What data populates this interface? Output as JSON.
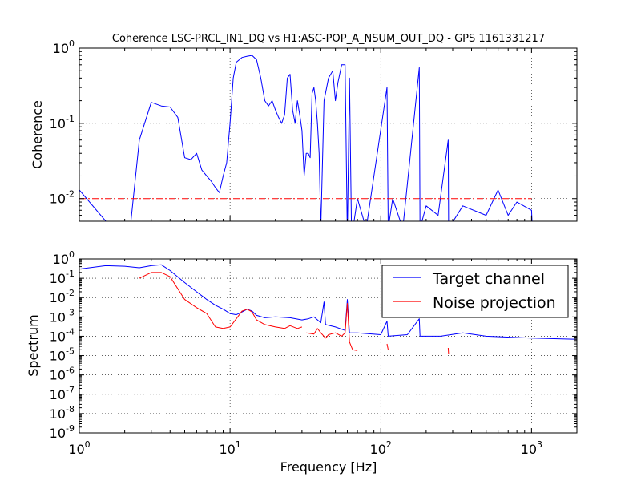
{
  "chart_data": [
    {
      "type": "line",
      "title": "Coherence LSC-PRCL_IN1_DQ vs H1:ASC-POP_A_NSUM_OUT_DQ - GPS 1161331217",
      "xlabel": "",
      "ylabel": "Coherence",
      "xscale": "log",
      "yscale": "log",
      "xlim": [
        1,
        2000
      ],
      "ylim": [
        0.005,
        1
      ],
      "yticks": [
        {
          "value": 1,
          "mantissa": "10",
          "exp": "0"
        },
        {
          "value": 0.1,
          "mantissa": "10",
          "exp": "-1"
        },
        {
          "value": 0.01,
          "mantissa": "10",
          "exp": "-2"
        }
      ],
      "grid": true,
      "series": [
        {
          "color": "#0000ff",
          "points": [
            [
              1.0,
              0.013
            ],
            [
              1.5,
              0.005
            ],
            [
              2.1,
              0.0045
            ],
            [
              2.2,
              0.005
            ],
            [
              2.5,
              0.06
            ],
            [
              3.0,
              0.19
            ],
            [
              3.5,
              0.17
            ],
            [
              4.0,
              0.165
            ],
            [
              4.5,
              0.12
            ],
            [
              5.0,
              0.035
            ],
            [
              5.5,
              0.033
            ],
            [
              6.0,
              0.04
            ],
            [
              6.5,
              0.024
            ],
            [
              7.0,
              0.02
            ],
            [
              7.5,
              0.017
            ],
            [
              8.0,
              0.014
            ],
            [
              8.5,
              0.012
            ],
            [
              9.0,
              0.02
            ],
            [
              9.5,
              0.03
            ],
            [
              10.0,
              0.1
            ],
            [
              10.5,
              0.4
            ],
            [
              11.0,
              0.65
            ],
            [
              12.0,
              0.75
            ],
            [
              13.0,
              0.78
            ],
            [
              14.0,
              0.8
            ],
            [
              15.0,
              0.7
            ],
            [
              16.0,
              0.4
            ],
            [
              17.0,
              0.2
            ],
            [
              18.0,
              0.17
            ],
            [
              19.0,
              0.2
            ],
            [
              20.0,
              0.15
            ],
            [
              21.0,
              0.12
            ],
            [
              22.0,
              0.1
            ],
            [
              23.0,
              0.13
            ],
            [
              24.0,
              0.4
            ],
            [
              25.0,
              0.45
            ],
            [
              26.0,
              0.15
            ],
            [
              27.0,
              0.1
            ],
            [
              28.0,
              0.2
            ],
            [
              29.0,
              0.13
            ],
            [
              30.0,
              0.08
            ],
            [
              31.0,
              0.02
            ],
            [
              32.0,
              0.04
            ],
            [
              33.0,
              0.04
            ],
            [
              34.0,
              0.035
            ],
            [
              35.0,
              0.25
            ],
            [
              36.0,
              0.3
            ],
            [
              37.0,
              0.2
            ],
            [
              38.0,
              0.1
            ],
            [
              39.0,
              0.04
            ],
            [
              40.0,
              0.004
            ],
            [
              42.0,
              0.2
            ],
            [
              45.0,
              0.4
            ],
            [
              48.0,
              0.5
            ],
            [
              50.0,
              0.2
            ],
            [
              52.0,
              0.35
            ],
            [
              55.0,
              0.6
            ],
            [
              58.0,
              0.6
            ],
            [
              60.0,
              0.003
            ],
            [
              62.0,
              0.4
            ],
            [
              64.0,
              0.003
            ],
            [
              70.0,
              0.01
            ],
            [
              80.0,
              0.004
            ],
            [
              110.0,
              0.3
            ],
            [
              112.0,
              0.004
            ],
            [
              120.0,
              0.01
            ],
            [
              140.0,
              0.004
            ],
            [
              180.0,
              0.55
            ],
            [
              182.0,
              0.004
            ],
            [
              200.0,
              0.008
            ],
            [
              240.0,
              0.006
            ],
            [
              280.0,
              0.06
            ],
            [
              282.0,
              0.004
            ],
            [
              350.0,
              0.008
            ],
            [
              500.0,
              0.006
            ],
            [
              600.0,
              0.013
            ],
            [
              700.0,
              0.006
            ],
            [
              800.0,
              0.009
            ],
            [
              1000.0,
              0.007
            ],
            [
              1010.0,
              0.0045
            ]
          ]
        },
        {
          "color": "#ff0000",
          "dash": "dashdot",
          "points": [
            [
              1.0,
              0.01
            ],
            [
              1000.0,
              0.01
            ]
          ]
        }
      ]
    },
    {
      "type": "line",
      "title": "",
      "xlabel": "Frequency [Hz]",
      "ylabel": "Spectrum",
      "xscale": "log",
      "yscale": "log",
      "xlim": [
        1,
        2000
      ],
      "ylim": [
        1e-09,
        1
      ],
      "xticks": [
        {
          "value": 1,
          "mantissa": "10",
          "exp": "0"
        },
        {
          "value": 10,
          "mantissa": "10",
          "exp": "1"
        },
        {
          "value": 100,
          "mantissa": "10",
          "exp": "2"
        },
        {
          "value": 1000,
          "mantissa": "10",
          "exp": "3"
        }
      ],
      "yticks": [
        {
          "value": 1,
          "mantissa": "10",
          "exp": "0"
        },
        {
          "value": 0.1,
          "mantissa": "10",
          "exp": "-1"
        },
        {
          "value": 0.01,
          "mantissa": "10",
          "exp": "-2"
        },
        {
          "value": 0.001,
          "mantissa": "10",
          "exp": "-3"
        },
        {
          "value": 0.0001,
          "mantissa": "10",
          "exp": "-4"
        },
        {
          "value": 1e-05,
          "mantissa": "10",
          "exp": "-5"
        },
        {
          "value": 1e-06,
          "mantissa": "10",
          "exp": "-6"
        },
        {
          "value": 1e-07,
          "mantissa": "10",
          "exp": "-7"
        },
        {
          "value": 1e-08,
          "mantissa": "10",
          "exp": "-8"
        },
        {
          "value": 1e-09,
          "mantissa": "10",
          "exp": "-9"
        }
      ],
      "grid": true,
      "legend_position": "top-right",
      "series": [
        {
          "name": "Target channel",
          "color": "#0000ff",
          "points": [
            [
              1.0,
              0.3
            ],
            [
              1.5,
              0.45
            ],
            [
              2.0,
              0.42
            ],
            [
              2.5,
              0.35
            ],
            [
              3.0,
              0.45
            ],
            [
              3.5,
              0.5
            ],
            [
              4.0,
              0.25
            ],
            [
              5.0,
              0.06
            ],
            [
              6.0,
              0.02
            ],
            [
              7.0,
              0.008
            ],
            [
              8.0,
              0.004
            ],
            [
              9.0,
              0.0025
            ],
            [
              10.0,
              0.0015
            ],
            [
              11.0,
              0.0013
            ],
            [
              12.0,
              0.0018
            ],
            [
              13.0,
              0.0025
            ],
            [
              14.0,
              0.002
            ],
            [
              15.0,
              0.0012
            ],
            [
              17.0,
              0.0009
            ],
            [
              20.0,
              0.001
            ],
            [
              25.0,
              0.0009
            ],
            [
              30.0,
              0.0007
            ],
            [
              33.0,
              0.0008
            ],
            [
              36.0,
              0.001
            ],
            [
              40.0,
              0.0005
            ],
            [
              42.0,
              0.006
            ],
            [
              43.0,
              0.0004
            ],
            [
              50.0,
              0.0003
            ],
            [
              58.0,
              0.0002
            ],
            [
              60.0,
              0.008
            ],
            [
              62.0,
              0.00015
            ],
            [
              70.0,
              0.00015
            ],
            [
              100.0,
              0.00012
            ],
            [
              110.0,
              0.0006
            ],
            [
              112.0,
              0.0001
            ],
            [
              150.0,
              0.00012
            ],
            [
              180.0,
              0.0008
            ],
            [
              182.0,
              0.0001
            ],
            [
              250.0,
              0.0001
            ],
            [
              350.0,
              0.00015
            ],
            [
              500.0,
              0.0001
            ],
            [
              1000.0,
              8e-05
            ],
            [
              2000.0,
              7e-05
            ]
          ]
        },
        {
          "name": "Noise projection",
          "color": "#ff0000",
          "points": [
            [
              2.5,
              0.1
            ],
            [
              3.0,
              0.2
            ],
            [
              3.5,
              0.2
            ],
            [
              4.0,
              0.12
            ],
            [
              5.0,
              0.008
            ],
            [
              6.0,
              0.003
            ],
            [
              7.0,
              0.0015
            ],
            [
              8.0,
              0.0003
            ],
            [
              9.0,
              0.00025
            ],
            [
              10.0,
              0.0003
            ],
            [
              11.0,
              0.0008
            ],
            [
              12.0,
              0.002
            ],
            [
              13.0,
              0.0025
            ],
            [
              14.0,
              0.0018
            ],
            [
              15.0,
              0.0007
            ],
            [
              17.0,
              0.0004
            ],
            [
              20.0,
              0.0003
            ],
            [
              23.0,
              0.00025
            ],
            [
              25.0,
              0.00035
            ],
            [
              28.0,
              0.00025
            ],
            [
              30.0,
              0.0003
            ]
          ]
        },
        {
          "color": "#ff0000",
          "points": [
            [
              32.0,
              0.00015
            ],
            [
              36.0,
              0.00013
            ],
            [
              38.0,
              0.00025
            ],
            [
              40.0,
              0.00015
            ],
            [
              43.0,
              8e-05
            ],
            [
              45.0,
              0.00012
            ],
            [
              50.0,
              0.00015
            ],
            [
              55.0,
              0.0001
            ],
            [
              58.0,
              0.00015
            ],
            [
              60.0,
              0.005
            ],
            [
              62.0,
              5e-05
            ],
            [
              65.0,
              2e-05
            ],
            [
              70.0,
              1.8e-05
            ]
          ]
        },
        {
          "color": "#ff0000",
          "points": [
            [
              110.0,
              4e-05
            ],
            [
              112.0,
              2e-05
            ]
          ]
        },
        {
          "color": "#ff0000",
          "points": [
            [
              280.0,
              2.5e-05
            ],
            [
              282.0,
              1.2e-05
            ]
          ]
        }
      ]
    }
  ]
}
